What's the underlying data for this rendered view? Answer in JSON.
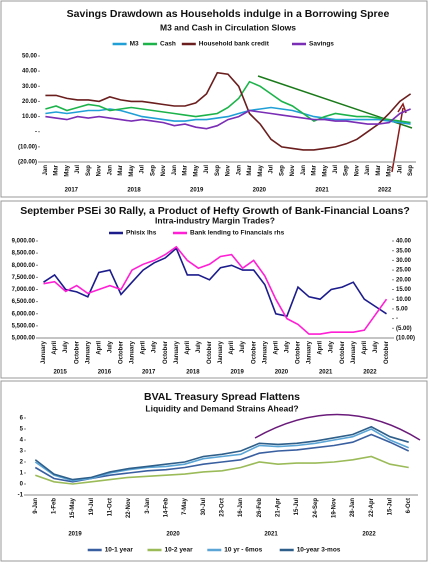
{
  "chart_data": [
    {
      "type": "line",
      "title": "Savings Drawdown as Households indulge in a Borrowing Spree",
      "subtitle": "M3 and Cash in Circulation Slows",
      "categories": [
        "Jan",
        "Mar",
        "May",
        "Jul",
        "Sep",
        "Nov",
        "Jan",
        "Mar",
        "May",
        "Jul",
        "Sep",
        "Nov",
        "Jan",
        "Mar",
        "May",
        "Jul",
        "Sep",
        "Nov",
        "Jan",
        "Mar",
        "May",
        "Jul",
        "Sep",
        "Nov",
        "Jan",
        "Mar",
        "May",
        "Jul",
        "Sep",
        "Nov",
        "Jan",
        "Mar",
        "May",
        "Jul",
        "Sep"
      ],
      "years": [
        "2017",
        "2018",
        "2019",
        "2020",
        "2021",
        "2022"
      ],
      "ylim": [
        -20,
        50
      ],
      "yticks": [
        {
          "value": 50,
          "label": "50.00"
        },
        {
          "value": 40,
          "label": "40.00"
        },
        {
          "value": 30,
          "label": "30.00"
        },
        {
          "value": 20,
          "label": "20.00"
        },
        {
          "value": 10,
          "label": "10.00"
        },
        {
          "value": 0,
          "label": "-"
        },
        {
          "value": -10,
          "label": "(10.00)"
        },
        {
          "value": -20,
          "label": "(20.00)"
        }
      ],
      "series": [
        {
          "name": "M3",
          "color": "#1f9fd6",
          "values": [
            12,
            13,
            12,
            13,
            14,
            14,
            15,
            14,
            12,
            10,
            9,
            8,
            7,
            7,
            8,
            8,
            9,
            10,
            12,
            14,
            15,
            16,
            15,
            14,
            12,
            10,
            9,
            8,
            8,
            8,
            8,
            8,
            7,
            6,
            5
          ]
        },
        {
          "name": "Cash",
          "color": "#1db34b",
          "values": [
            15,
            17,
            14,
            16,
            18,
            17,
            14,
            15,
            16,
            15,
            14,
            13,
            12,
            11,
            10,
            11,
            12,
            16,
            22,
            33,
            30,
            25,
            20,
            17,
            12,
            7,
            10,
            12,
            11,
            10,
            10,
            9,
            8,
            7,
            6
          ]
        },
        {
          "name": "Household bank credit",
          "color": "#6b1e1e",
          "values": [
            24,
            24,
            22,
            21,
            21,
            20,
            23,
            21,
            20,
            20,
            19,
            18,
            17,
            17,
            19,
            25,
            39,
            38,
            30,
            12,
            5,
            -5,
            -10,
            -11,
            -12,
            -12,
            -11,
            -10,
            -8,
            -5,
            0,
            5,
            12,
            20,
            25
          ]
        },
        {
          "name": "Savings",
          "color": "#7a2db5",
          "values": [
            10,
            9,
            8,
            10,
            9,
            10,
            9,
            8,
            7,
            8,
            7,
            6,
            4,
            5,
            3,
            2,
            4,
            8,
            10,
            14,
            13,
            12,
            11,
            10,
            9,
            8,
            8,
            7,
            7,
            6,
            5,
            5,
            6,
            12,
            15
          ]
        }
      ]
    },
    {
      "type": "line",
      "title": "September PSEi 30 Rally, a Product of Hefty Growth of Bank-Financial Loans?",
      "subtitle": "Intra-industry Margin Trades?",
      "categories": [
        "January",
        "April",
        "July",
        "October",
        "January",
        "April",
        "July",
        "October",
        "January",
        "April",
        "July",
        "October",
        "January",
        "April",
        "July",
        "October",
        "January",
        "April",
        "July",
        "October",
        "January",
        "April",
        "July",
        "October",
        "January",
        "April",
        "July",
        "October",
        "January",
        "April",
        "July",
        "October"
      ],
      "years": [
        "2015",
        "2016",
        "2017",
        "2018",
        "2019",
        "2020",
        "2021",
        "2022"
      ],
      "ylim": [
        5000,
        9000
      ],
      "yticks": [
        {
          "value": 9000,
          "label": "9,000.00"
        },
        {
          "value": 8500,
          "label": "8,500.00"
        },
        {
          "value": 8000,
          "label": "8,000.00"
        },
        {
          "value": 7500,
          "label": "7,500.00"
        },
        {
          "value": 7000,
          "label": "7,000.00"
        },
        {
          "value": 6500,
          "label": "6,500.00"
        },
        {
          "value": 6000,
          "label": "6,000.00"
        },
        {
          "value": 5500,
          "label": "5,500.00"
        },
        {
          "value": 5000,
          "label": "5,000.00"
        }
      ],
      "y2lim": [
        -10,
        40
      ],
      "y2ticks": [
        {
          "value": 40,
          "label": "40.00"
        },
        {
          "value": 35,
          "label": "35.00"
        },
        {
          "value": 30,
          "label": "30.00"
        },
        {
          "value": 25,
          "label": "25.00"
        },
        {
          "value": 20,
          "label": "20.00"
        },
        {
          "value": 15,
          "label": "15.00"
        },
        {
          "value": 10,
          "label": "10.00"
        },
        {
          "value": 5,
          "label": "5.00"
        },
        {
          "value": 0,
          "label": "-"
        },
        {
          "value": -5,
          "label": "(5.00)"
        },
        {
          "value": -10,
          "label": "(10.00)"
        }
      ],
      "series": [
        {
          "name": "Phisix lhs",
          "color": "#1c1c8c",
          "values": [
            7300,
            7600,
            7000,
            6900,
            6700,
            7700,
            7800,
            6800,
            7300,
            7800,
            8100,
            8300,
            8700,
            7600,
            7600,
            7400,
            7900,
            8000,
            7800,
            7800,
            7200,
            6000,
            5900,
            7100,
            6700,
            6600,
            7000,
            7100,
            7300,
            6600,
            6300,
            6000
          ]
        },
        {
          "name": "Bank lending to Financials rhs",
          "color": "#ff1fd4",
          "axis": "y2",
          "values": [
            18,
            19,
            14,
            17,
            13,
            15,
            17,
            15,
            25,
            28,
            30,
            33,
            37,
            30,
            26,
            28,
            32,
            33,
            26,
            30,
            22,
            10,
            0,
            -3,
            -8,
            -8,
            -7,
            -7,
            -7,
            -6,
            2,
            10
          ]
        }
      ]
    },
    {
      "type": "line",
      "title": "BVAL Treasury Spread Flattens",
      "subtitle": "Liquidity and Demand Strains Ahead?",
      "categories": [
        "9-Jan",
        "1-Feb",
        "15-May",
        "19-Jul",
        "11-Oct",
        "22-Nov",
        "3-Jan",
        "14-Feb",
        "7-May",
        "30-Jul",
        "23-Oct",
        "16-Jan",
        "26-Feb",
        "21-Apr",
        "15-Jul",
        "24-Sep",
        "19-Nov",
        "28-Jan",
        "22-Apr",
        "15-Jul",
        "6-Oct"
      ],
      "years": [
        "2019",
        "2020",
        "2021",
        "2022"
      ],
      "ylim": [
        -1,
        6
      ],
      "yticks": [
        -1,
        0,
        1,
        2,
        3,
        4,
        5,
        6
      ],
      "series": [
        {
          "name": "10-1 year",
          "color": "#3a5fa0",
          "values": [
            1.5,
            0.5,
            0.2,
            0.5,
            0.8,
            1.0,
            1.2,
            1.3,
            1.5,
            1.8,
            2.0,
            2.2,
            2.8,
            3.0,
            3.1,
            3.3,
            3.5,
            3.8,
            4.5,
            3.8,
            3.0
          ]
        },
        {
          "name": "10-2 year",
          "color": "#9bbb59",
          "values": [
            0.8,
            0.2,
            0,
            0.2,
            0.4,
            0.6,
            0.7,
            0.8,
            0.9,
            1.1,
            1.2,
            1.5,
            2.0,
            1.8,
            1.9,
            1.9,
            2.0,
            2.2,
            2.5,
            1.8,
            1.5
          ]
        },
        {
          "name": "10 yr - 6mos",
          "color": "#5aa5d6",
          "values": [
            2,
            0.8,
            0.3,
            0.5,
            1.0,
            1.3,
            1.5,
            1.6,
            1.8,
            2.3,
            2.5,
            2.7,
            3.5,
            3.4,
            3.5,
            3.7,
            4.0,
            4.3,
            5.0,
            4.0,
            3.3
          ]
        },
        {
          "name": "10-year 3-mos",
          "color": "#2e5f8a",
          "values": [
            2.2,
            0.9,
            0.4,
            0.6,
            1.1,
            1.4,
            1.6,
            1.8,
            2.0,
            2.5,
            2.7,
            3.0,
            3.7,
            3.6,
            3.7,
            3.9,
            4.2,
            4.5,
            5.2,
            4.3,
            3.8
          ]
        }
      ]
    }
  ]
}
